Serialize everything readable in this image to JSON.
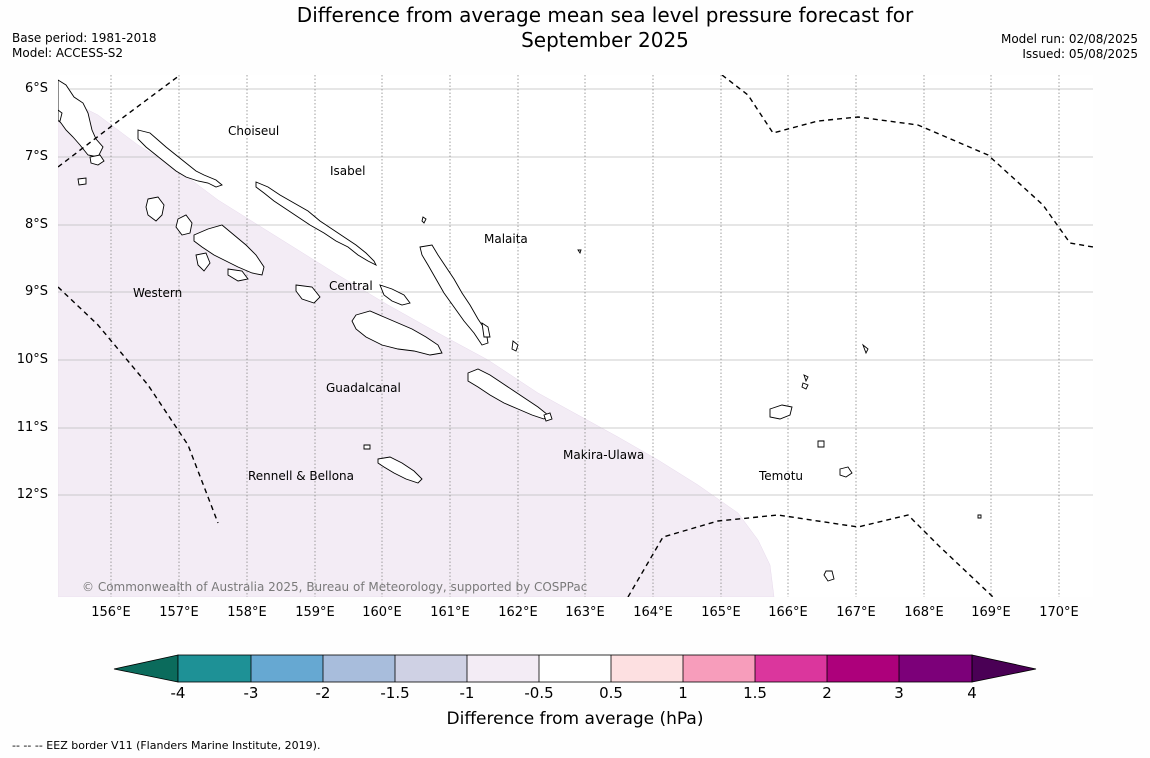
{
  "title": {
    "line1": "Difference from average mean sea level pressure forecast for",
    "line2": "September 2025"
  },
  "meta": {
    "base_period": "Base period: 1981-2018",
    "model": "Model: ACCESS-S2",
    "model_run": "Model run: 02/08/2025",
    "issued": "Issued: 05/08/2025"
  },
  "map": {
    "lat_labels": [
      "6°S",
      "7°S",
      "8°S",
      "9°S",
      "10°S",
      "11°S",
      "12°S"
    ],
    "lon_labels": [
      "156°E",
      "157°E",
      "158°E",
      "159°E",
      "160°E",
      "161°E",
      "162°E",
      "163°E",
      "164°E",
      "165°E",
      "166°E",
      "167°E",
      "168°E",
      "169°E",
      "170°E"
    ],
    "regions": {
      "choiseul": "Choiseul",
      "isabel": "Isabel",
      "malaita": "Malaita",
      "western": "Western",
      "central": "Central",
      "guadalcanal": "Guadalcanal",
      "makira_ulawa": "Makira-Ulawa",
      "rennell_bellona": "Rennell & Bellona",
      "temotu": "Temotu"
    },
    "credit": "© Commonwealth of Australia 2025, Bureau of Meteorology, supported by COSPPac",
    "shaded_category": "-1 to -0.5",
    "shade_color": "#f3ecf5"
  },
  "colorbar": {
    "title": "Difference from average (hPa)",
    "ticks": [
      "-4",
      "-3",
      "-2",
      "-1.5",
      "-1",
      "-0.5",
      "0.5",
      "1",
      "1.5",
      "2",
      "3",
      "4"
    ],
    "colors": [
      "#0b6b5c",
      "#1e9196",
      "#66a8d2",
      "#a8bddc",
      "#cfd1e4",
      "#f3ecf5",
      "#ffffff",
      "#fde0e1",
      "#f79dbb",
      "#db369d",
      "#ad007b",
      "#7c0079",
      "#4a0055"
    ]
  },
  "footnote": "--  --  -- EEZ border V11 (Flanders Marine Institute, 2019)."
}
